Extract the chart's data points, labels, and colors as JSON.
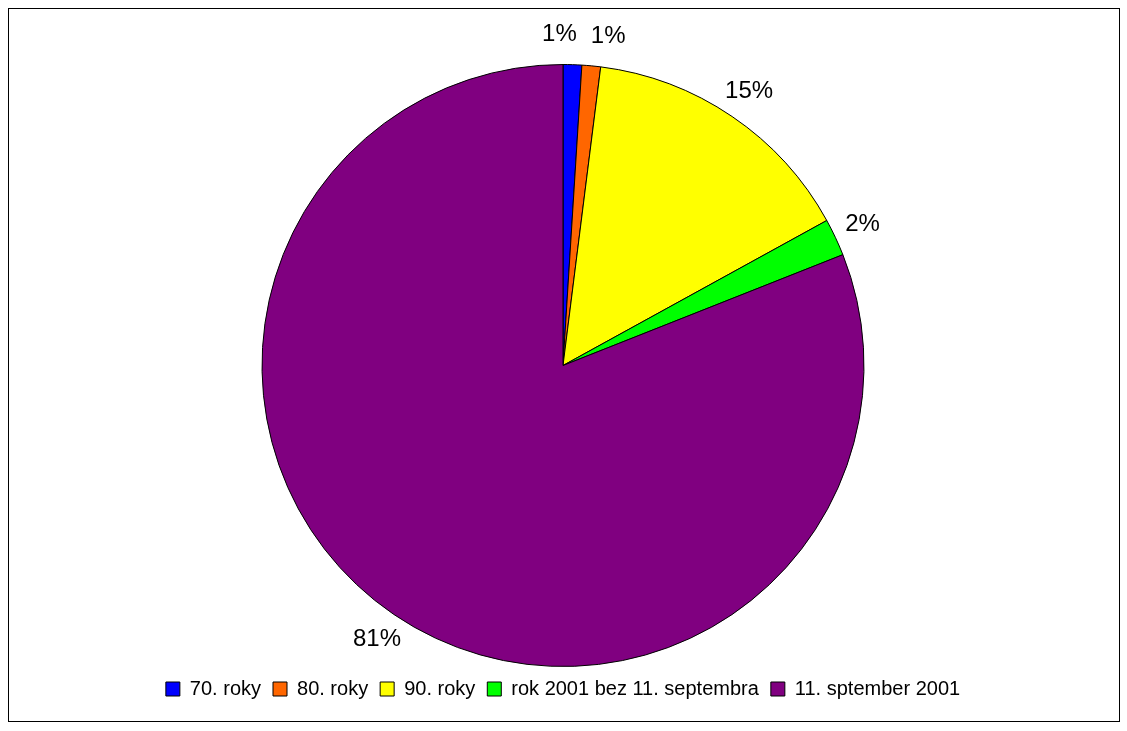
{
  "chart_data": {
    "type": "pie",
    "categories": [
      "70. roky",
      "80. roky",
      "90. roky",
      "rok 2001 bez 11. septembra",
      "11. sptember 2001"
    ],
    "values": [
      1,
      1,
      15,
      2,
      81
    ],
    "value_labels": [
      "1%",
      "1%",
      "15%",
      "2%",
      "81%"
    ],
    "colors": [
      "#0000ff",
      "#ff6600",
      "#ffff00",
      "#00ff00",
      "#800080"
    ],
    "legend": "bottom"
  }
}
